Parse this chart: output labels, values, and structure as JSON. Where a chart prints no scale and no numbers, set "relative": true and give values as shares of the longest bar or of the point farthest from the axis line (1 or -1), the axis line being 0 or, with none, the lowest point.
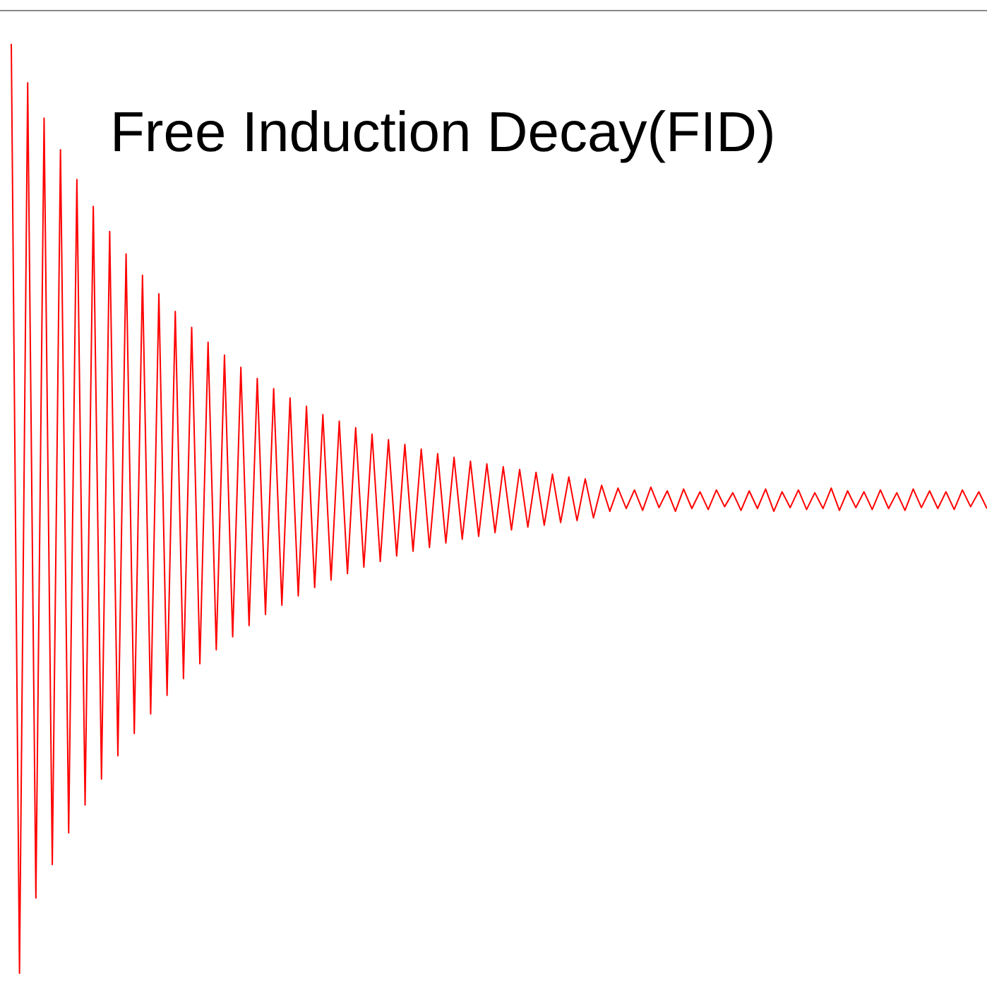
{
  "chart_data": {
    "type": "line",
    "title": "Free Induction Decay(FID)",
    "relative": true,
    "legend": false,
    "marker": "none",
    "categories": [
      null,
      null,
      null,
      null,
      null,
      null,
      null,
      null,
      null,
      null,
      null,
      null,
      null,
      null,
      null,
      null,
      null,
      null,
      null,
      null,
      null,
      null,
      null,
      null,
      null,
      null,
      null,
      null,
      null,
      null,
      null,
      null,
      null,
      null,
      null,
      null,
      null,
      null,
      null,
      null,
      null,
      null,
      null,
      null,
      null,
      null,
      null,
      null,
      null,
      null,
      null,
      null,
      null,
      null,
      null,
      null,
      null,
      null,
      null,
      null,
      null,
      null,
      null,
      null,
      null,
      null,
      null,
      null,
      null,
      null,
      null,
      null,
      null,
      null,
      null,
      null,
      null,
      null,
      null,
      null,
      null,
      null,
      null,
      null,
      null,
      null,
      null,
      null,
      null,
      null,
      null,
      null,
      null,
      null,
      null,
      null,
      null,
      null,
      null,
      null,
      null,
      null,
      null,
      null,
      null,
      null,
      null,
      null,
      null,
      null,
      null,
      null,
      null,
      null,
      null,
      null,
      null,
      null,
      null,
      null
    ],
    "series": [
      {
        "color": "#ff0000",
        "values": [
          1.0,
          0,
          0.958,
          0.081,
          0.92,
          0.117,
          0.886,
          0.151,
          0.854,
          0.181,
          0.825,
          0.209,
          0.798,
          0.234,
          0.774,
          0.258,
          0.751,
          0.279,
          0.731,
          0.299,
          0.712,
          0.317,
          0.695,
          0.333,
          0.679,
          0.348,
          0.665,
          0.362,
          0.652,
          0.374,
          0.64,
          0.386,
          0.629,
          0.396,
          0.619,
          0.406,
          0.61,
          0.415,
          0.601,
          0.423,
          0.594,
          0.43,
          0.587,
          0.437,
          0.58,
          0.443,
          0.574,
          0.449,
          0.569,
          0.454,
          0.564,
          0.458,
          0.559,
          0.463,
          0.555,
          0.467,
          0.551,
          0.47,
          0.548,
          0.474,
          0.545,
          0.477,
          0.542,
          0.48,
          0.539,
          0.482,
          0.537,
          0.485,
          0.534,
          0.487,
          0.532,
          0.49,
          0.525,
          0.497,
          0.522,
          0.5,
          0.52,
          0.498,
          0.523,
          0.501,
          0.519,
          0.497,
          0.521,
          0.5,
          0.518,
          0.499,
          0.52,
          0.502,
          0.517,
          0.498,
          0.519,
          0.5,
          0.521,
          0.497,
          0.518,
          0.501,
          0.52,
          0.499,
          0.517,
          0.5,
          0.522,
          0.498,
          0.519,
          0.501,
          0.518,
          0.499,
          0.52,
          0.5,
          0.517,
          0.498,
          0.521,
          0.501,
          0.519,
          0.5,
          0.518,
          0.499,
          0.52,
          0.502,
          0.518,
          0.5
        ]
      }
    ]
  }
}
